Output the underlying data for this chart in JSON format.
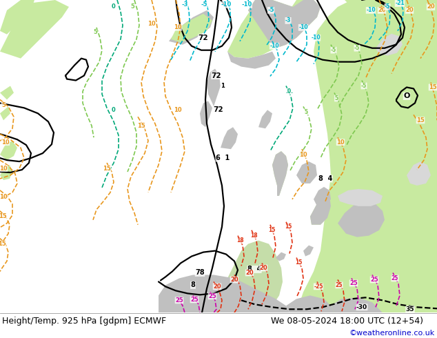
{
  "title_left": "Height/Temp. 925 hPa [gdpm] ECMWF",
  "title_right": "We 08-05-2024 18:00 UTC (12+54)",
  "credit": "©weatheronline.co.uk",
  "fig_width": 6.34,
  "fig_height": 4.9,
  "dpi": 100,
  "title_fontsize": 9.0,
  "credit_fontsize": 8.0,
  "credit_color": "#0000cc",
  "title_color": "#000000",
  "bg_ocean": "#d8d8d8",
  "bg_land_green": "#c8eaa0",
  "bg_land_gray": "#c0c0c0",
  "black_lw": 1.6,
  "temp_lw": 1.2
}
